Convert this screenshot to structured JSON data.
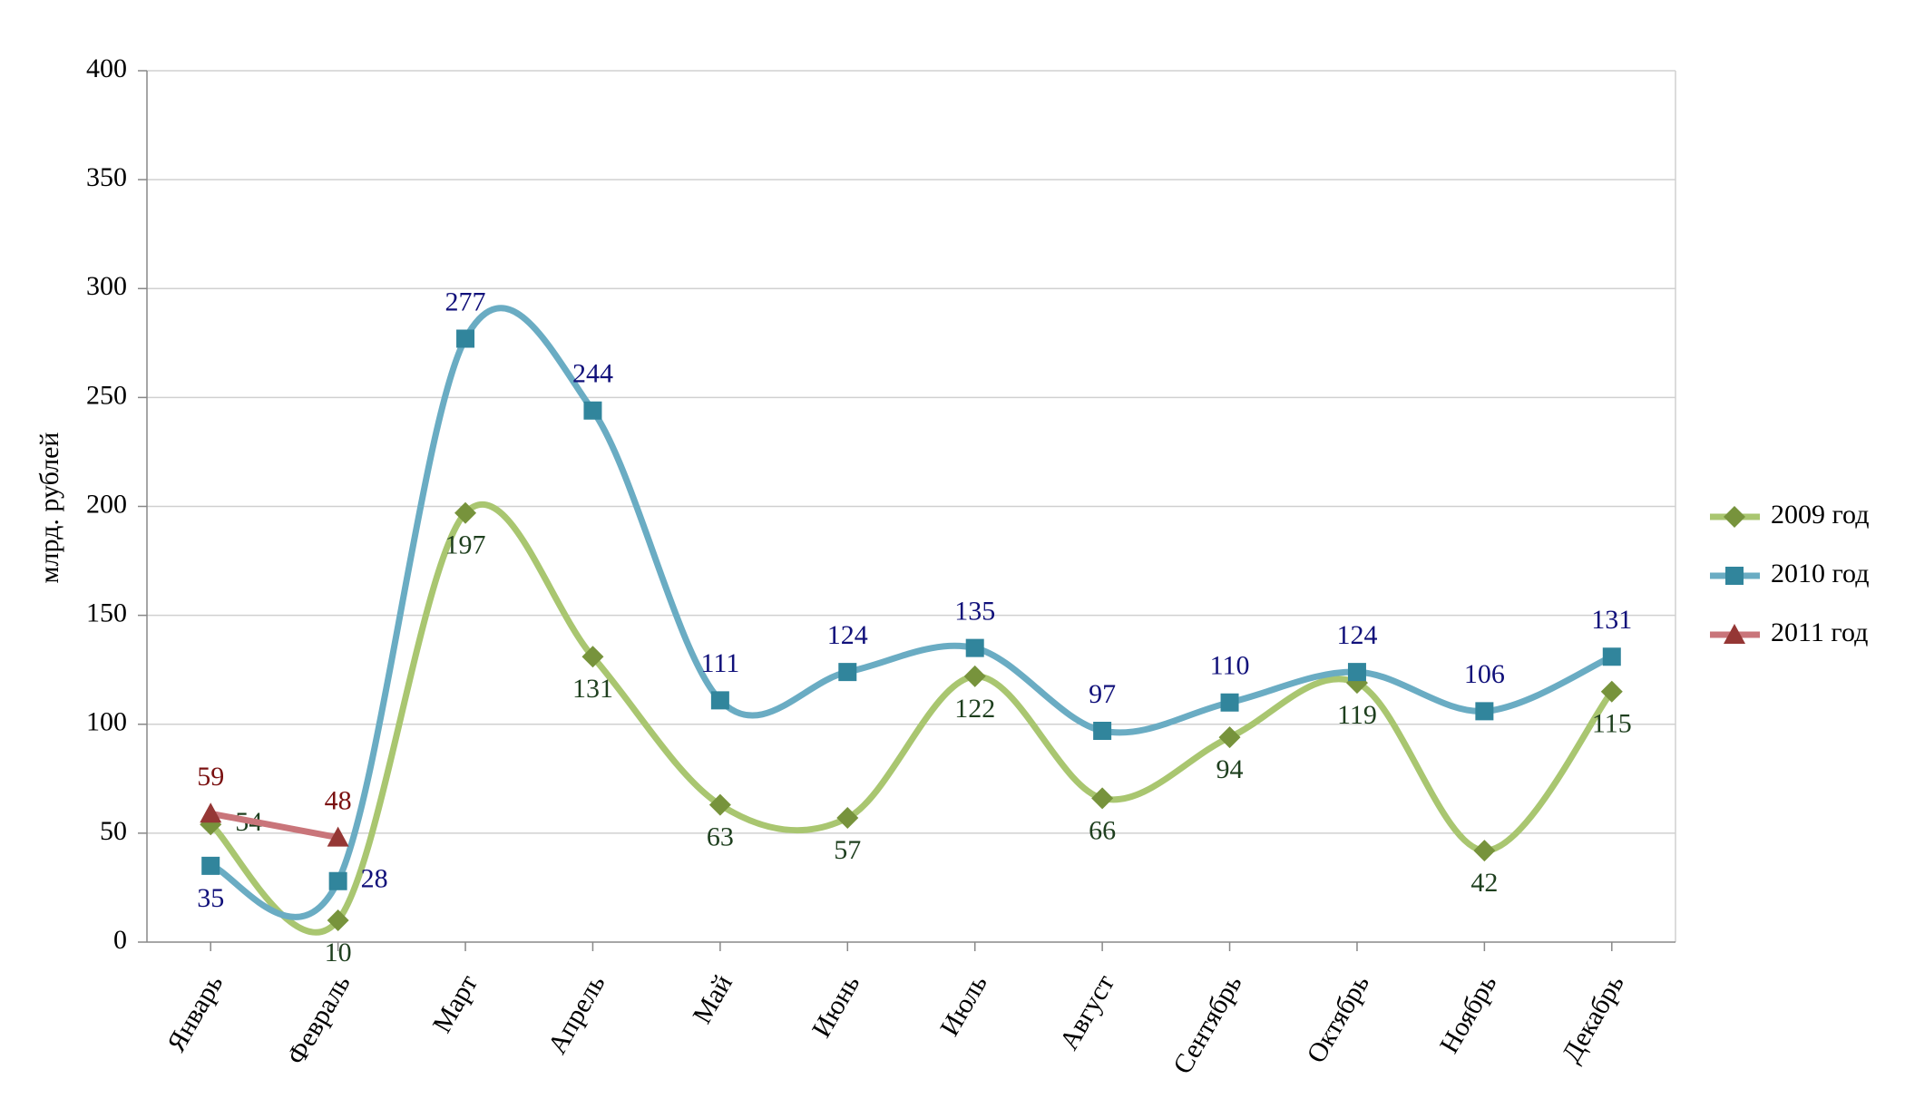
{
  "chart_data": {
    "type": "line",
    "y_axis_label": "млрд. рублей",
    "categories": [
      "Январь",
      "Февраль",
      "Март",
      "Апрель",
      "Май",
      "Июнь",
      "Июль",
      "Август",
      "Сентябрь",
      "Октябрь",
      "Ноябрь",
      "Декабрь"
    ],
    "series": [
      {
        "name": "2009 год",
        "color": "#a9c670",
        "marker_color": "#77933c",
        "label_color": "#1e3f1e",
        "marker": "diamond",
        "values": [
          54,
          10,
          197,
          131,
          63,
          57,
          122,
          66,
          94,
          119,
          42,
          115
        ]
      },
      {
        "name": "2010 год",
        "color": "#6aacc3",
        "marker_color": "#31859c",
        "label_color": "#10107a",
        "marker": "square",
        "values": [
          35,
          28,
          277,
          244,
          111,
          124,
          135,
          97,
          110,
          124,
          106,
          131
        ]
      },
      {
        "name": "2011 год",
        "color": "#c9757a",
        "marker_color": "#953735",
        "label_color": "#7a1010",
        "marker": "triangle",
        "values": [
          59,
          48,
          null,
          null,
          null,
          null,
          null,
          null,
          null,
          null,
          null,
          null
        ]
      }
    ],
    "ylim": [
      0,
      400
    ],
    "yticks": [
      0,
      50,
      100,
      150,
      200,
      250,
      300,
      350,
      400
    ],
    "grid": true,
    "legend": "right"
  }
}
